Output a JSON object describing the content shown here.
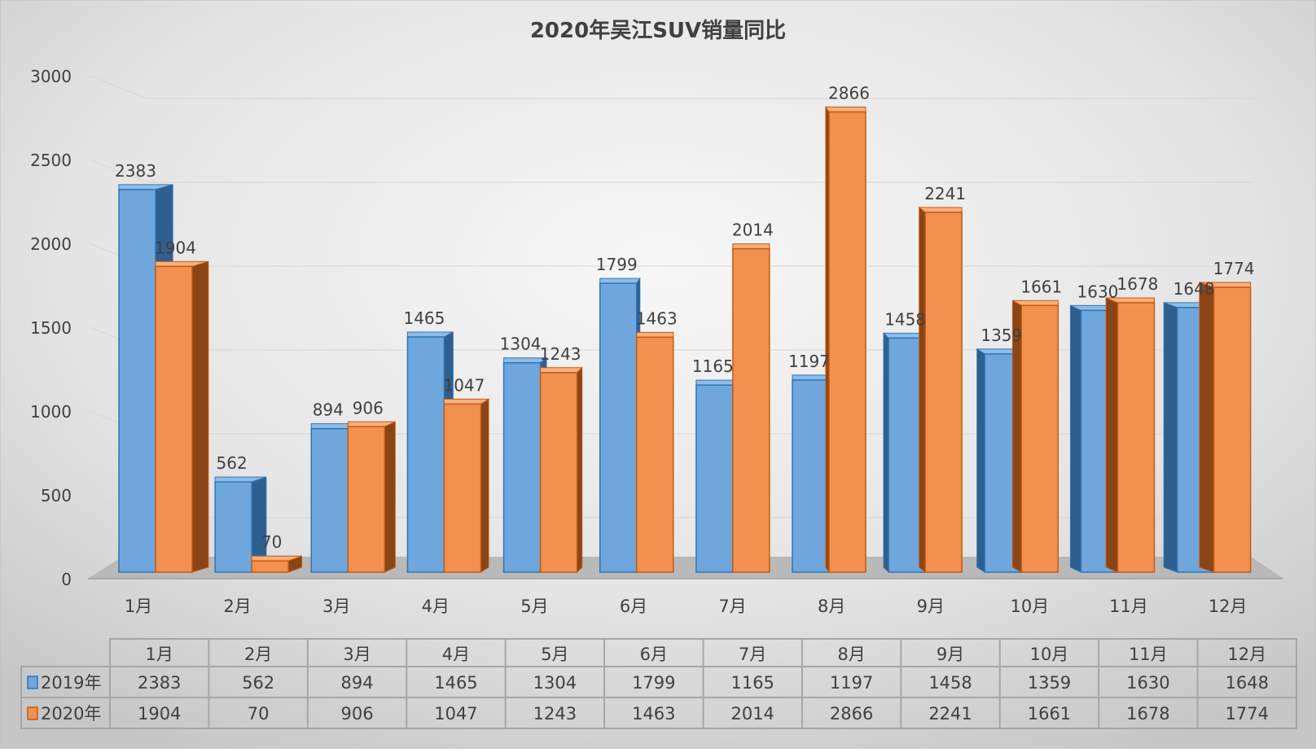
{
  "chart_data": {
    "type": "bar",
    "title": "2020年吴江SUV销量同比",
    "categories": [
      "1月",
      "2月",
      "3月",
      "4月",
      "5月",
      "6月",
      "7月",
      "8月",
      "9月",
      "10月",
      "11月",
      "12月"
    ],
    "series": [
      {
        "name": "2019年",
        "color": "#5b9bd5",
        "values": [
          2383,
          562,
          894,
          1465,
          1304,
          1799,
          1165,
          1197,
          1458,
          1359,
          1630,
          1648
        ]
      },
      {
        "name": "2020年",
        "color": "#ed7d31",
        "values": [
          1904,
          70,
          906,
          1047,
          1243,
          1463,
          2014,
          2866,
          2241,
          1661,
          1678,
          1774
        ]
      }
    ],
    "yticks": [
      0,
      500,
      1000,
      1500,
      2000,
      2500,
      3000
    ],
    "ylim": [
      0,
      3000
    ],
    "xlabel": "",
    "ylabel": "",
    "grid": true,
    "legend": "data-table-bottom",
    "data_table": true
  }
}
